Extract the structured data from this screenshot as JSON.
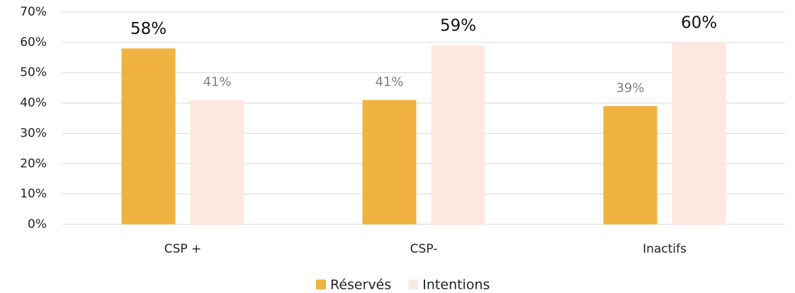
{
  "chart_data": {
    "type": "bar",
    "categories": [
      "CSP +",
      "CSP-",
      "Inactifs"
    ],
    "series": [
      {
        "name": "Réservés",
        "color": "#f0b241",
        "values": [
          58,
          41,
          39
        ],
        "value_labels": [
          "58%",
          "41%",
          "39%"
        ]
      },
      {
        "name": "Intentions",
        "color": "#fde8e1",
        "values": [
          41,
          59,
          60
        ],
        "value_labels": [
          "41%",
          "59%",
          "60%"
        ]
      }
    ],
    "ylim": [
      0,
      70
    ],
    "yticks": [
      {
        "value": 0,
        "label": "0%"
      },
      {
        "value": 10,
        "label": "10%"
      },
      {
        "value": 20,
        "label": "20%"
      },
      {
        "value": 30,
        "label": "30%"
      },
      {
        "value": 40,
        "label": "40%"
      },
      {
        "value": 50,
        "label": "50%"
      },
      {
        "value": 60,
        "label": "60%"
      },
      {
        "value": 70,
        "label": "70%"
      }
    ],
    "grid": true,
    "legend": "bottom"
  }
}
